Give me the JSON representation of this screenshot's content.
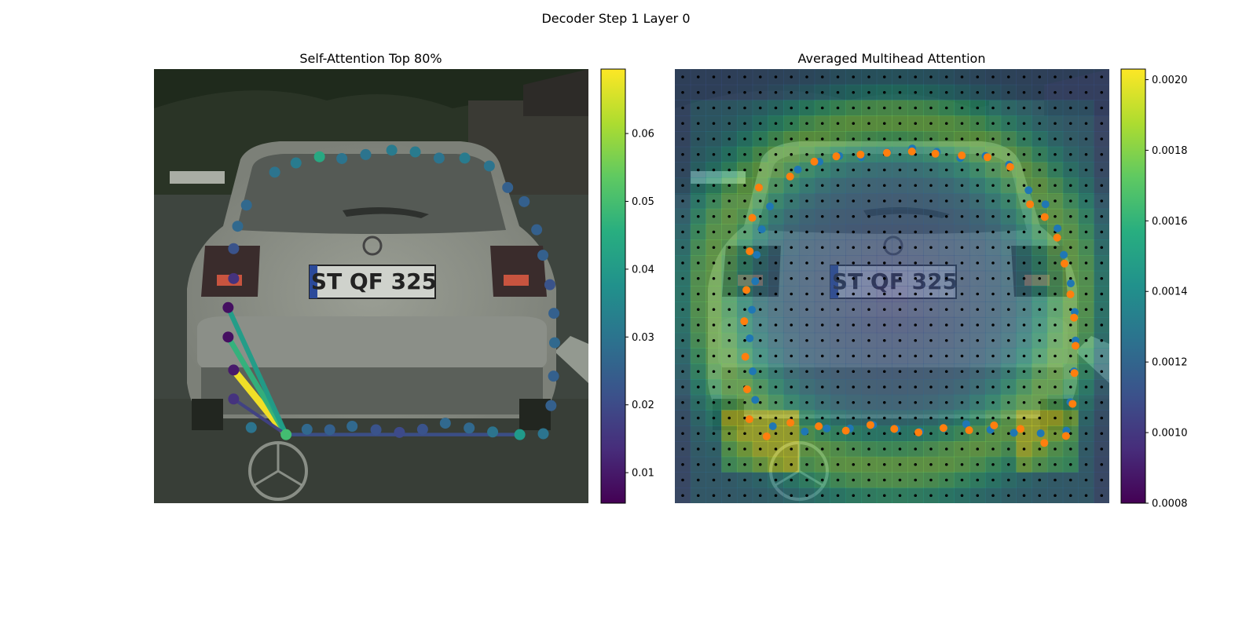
{
  "figure": {
    "suptitle": "Decoder Step 1 Layer 0"
  },
  "chart_data": [
    {
      "type": "scatter",
      "title": "Self-Attention Top 80%",
      "image_background": "photo of silver hatchback rear, license plate reads",
      "plate_text": "ST QF 325",
      "colormap": "viridis",
      "colorbar": {
        "min": 0.0055,
        "max": 0.0695,
        "ticks": [
          0.01,
          0.02,
          0.03,
          0.04,
          0.05,
          0.06
        ],
        "tick_labels": [
          "0.01",
          "0.02",
          "0.03",
          "0.04",
          "0.05",
          "0.06"
        ]
      },
      "xlim": [
        0,
        1
      ],
      "ylim": [
        0,
        1
      ],
      "points": [
        [
          0.237,
          0.222,
          0.03
        ],
        [
          0.295,
          0.201,
          0.032
        ],
        [
          0.359,
          0.187,
          0.044
        ],
        [
          0.42,
          0.191,
          0.03
        ],
        [
          0.485,
          0.182,
          0.03
        ],
        [
          0.556,
          0.172,
          0.032
        ],
        [
          0.62,
          0.176,
          0.032
        ],
        [
          0.685,
          0.19,
          0.03
        ],
        [
          0.755,
          0.19,
          0.032
        ],
        [
          0.822,
          0.208,
          0.03
        ],
        [
          0.872,
          0.257,
          0.025
        ],
        [
          0.917,
          0.289,
          0.025
        ],
        [
          0.951,
          0.353,
          0.025
        ],
        [
          0.968,
          0.411,
          0.025
        ],
        [
          0.987,
          0.478,
          0.022
        ],
        [
          0.998,
          0.543,
          0.025
        ],
        [
          1.0,
          0.61,
          0.027
        ],
        [
          0.997,
          0.686,
          0.025
        ],
        [
          0.99,
          0.753,
          0.025
        ],
        [
          0.969,
          0.817,
          0.03
        ],
        [
          0.905,
          0.819,
          0.04
        ],
        [
          0.831,
          0.813,
          0.03
        ],
        [
          0.767,
          0.804,
          0.027
        ],
        [
          0.702,
          0.793,
          0.027
        ],
        [
          0.64,
          0.807,
          0.022
        ],
        [
          0.577,
          0.814,
          0.02
        ],
        [
          0.513,
          0.808,
          0.022
        ],
        [
          0.448,
          0.8,
          0.027
        ],
        [
          0.387,
          0.808,
          0.025
        ],
        [
          0.325,
          0.807,
          0.027
        ],
        [
          0.268,
          0.819,
          0.05
        ],
        [
          0.173,
          0.803,
          0.03
        ],
        [
          0.125,
          0.738,
          0.015
        ],
        [
          0.125,
          0.672,
          0.01
        ],
        [
          0.11,
          0.597,
          0.008
        ],
        [
          0.11,
          0.53,
          0.008
        ],
        [
          0.125,
          0.464,
          0.015
        ],
        [
          0.125,
          0.396,
          0.022
        ],
        [
          0.136,
          0.345,
          0.027
        ],
        [
          0.16,
          0.297,
          0.027
        ]
      ],
      "edges": [
        {
          "from": 30,
          "to": 33,
          "value": 0.069
        },
        {
          "from": 30,
          "to": 34,
          "value": 0.047
        },
        {
          "from": 30,
          "to": 35,
          "value": 0.041
        },
        {
          "from": 30,
          "to": 20,
          "value": 0.021
        },
        {
          "from": 30,
          "to": 32,
          "value": 0.018
        }
      ]
    },
    {
      "type": "heatmap",
      "title": "Averaged Multihead Attention",
      "image_background": "same car photo, darkened, overlaid with attention heatmap",
      "colormap": "viridis",
      "colorbar": {
        "min": 0.0008,
        "max": 0.00203,
        "ticks": [
          0.0008,
          0.001,
          0.0012,
          0.0014,
          0.0016,
          0.0018,
          0.002
        ],
        "tick_labels": [
          "0.0008",
          "0.0010",
          "0.0012",
          "0.0014",
          "0.0016",
          "0.0018",
          "0.0020"
        ]
      },
      "grid_size": 28,
      "blue_points": [
        [
          0.243,
          0.216
        ],
        [
          0.302,
          0.198
        ],
        [
          0.356,
          0.185
        ],
        [
          0.416,
          0.188
        ],
        [
          0.487,
          0.177
        ],
        [
          0.555,
          0.168
        ],
        [
          0.622,
          0.176
        ],
        [
          0.686,
          0.19
        ],
        [
          0.755,
          0.185
        ],
        [
          0.819,
          0.205
        ],
        [
          0.872,
          0.263
        ],
        [
          0.918,
          0.295
        ],
        [
          0.951,
          0.35
        ],
        [
          0.968,
          0.41
        ],
        [
          0.987,
          0.475
        ],
        [
          0.998,
          0.54
        ],
        [
          1.0,
          0.605
        ],
        [
          0.996,
          0.675
        ],
        [
          0.986,
          0.745
        ],
        [
          0.975,
          0.81
        ],
        [
          0.905,
          0.816
        ],
        [
          0.832,
          0.815
        ],
        [
          0.768,
          0.808
        ],
        [
          0.702,
          0.795
        ],
        [
          0.64,
          0.805
        ],
        [
          0.576,
          0.812
        ],
        [
          0.512,
          0.806
        ],
        [
          0.448,
          0.797
        ],
        [
          0.385,
          0.805
        ],
        [
          0.322,
          0.805
        ],
        [
          0.262,
          0.812
        ],
        [
          0.175,
          0.8
        ],
        [
          0.127,
          0.74
        ],
        [
          0.12,
          0.675
        ],
        [
          0.112,
          0.6
        ],
        [
          0.118,
          0.535
        ],
        [
          0.127,
          0.47
        ],
        [
          0.131,
          0.41
        ],
        [
          0.145,
          0.352
        ],
        [
          0.167,
          0.3
        ]
      ],
      "orange_points": [
        [
          0.222,
          0.232
        ],
        [
          0.288,
          0.198
        ],
        [
          0.348,
          0.186
        ],
        [
          0.414,
          0.182
        ],
        [
          0.486,
          0.178
        ],
        [
          0.554,
          0.175
        ],
        [
          0.618,
          0.18
        ],
        [
          0.69,
          0.184
        ],
        [
          0.76,
          0.188
        ],
        [
          0.822,
          0.21
        ],
        [
          0.876,
          0.295
        ],
        [
          0.916,
          0.324
        ],
        [
          0.95,
          0.371
        ],
        [
          0.97,
          0.43
        ],
        [
          0.986,
          0.5
        ],
        [
          0.996,
          0.553
        ],
        [
          1.0,
          0.617
        ],
        [
          0.997,
          0.679
        ],
        [
          0.992,
          0.749
        ],
        [
          0.974,
          0.822
        ],
        [
          0.915,
          0.838
        ],
        [
          0.85,
          0.806
        ],
        [
          0.778,
          0.798
        ],
        [
          0.71,
          0.809
        ],
        [
          0.64,
          0.804
        ],
        [
          0.572,
          0.814
        ],
        [
          0.506,
          0.806
        ],
        [
          0.441,
          0.797
        ],
        [
          0.374,
          0.81
        ],
        [
          0.3,
          0.8
        ],
        [
          0.223,
          0.792
        ],
        [
          0.158,
          0.823
        ],
        [
          0.111,
          0.784
        ],
        [
          0.105,
          0.716
        ],
        [
          0.1,
          0.642
        ],
        [
          0.097,
          0.561
        ],
        [
          0.103,
          0.49
        ],
        [
          0.112,
          0.402
        ],
        [
          0.119,
          0.326
        ],
        [
          0.137,
          0.257
        ]
      ]
    }
  ]
}
